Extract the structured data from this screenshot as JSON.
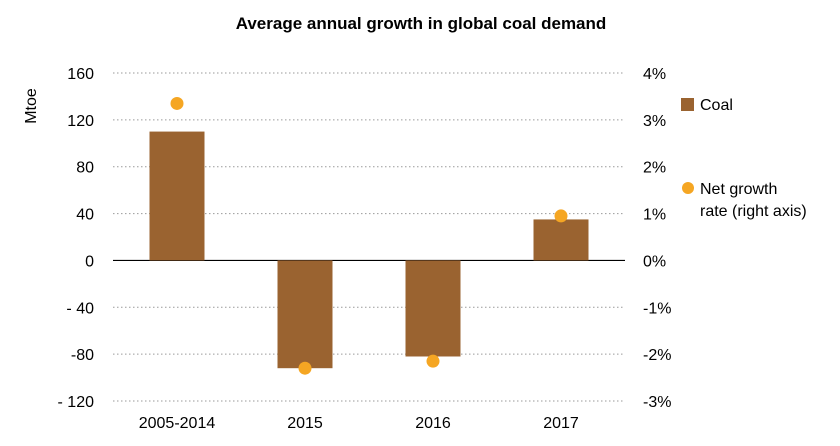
{
  "chart_data": {
    "type": "bar",
    "title": "Average annual growth in global coal demand",
    "ylabel": "Mtoe",
    "ylabel_right": "",
    "categories": [
      "2005-2014",
      "2015",
      "2016",
      "2017"
    ],
    "ylim": [
      -120,
      160
    ],
    "y_ticks": [
      "160",
      "120",
      "80",
      "40",
      "0",
      "- 40",
      "-80",
      "- 120"
    ],
    "y_tick_values": [
      160,
      120,
      80,
      40,
      0,
      -40,
      -80,
      -120
    ],
    "y2lim": [
      -3,
      4
    ],
    "y2_ticks": [
      "4%",
      "3%",
      "2%",
      "1%",
      "0%",
      "-1%",
      "-2%",
      "-3%"
    ],
    "y2_tick_values": [
      4,
      3,
      2,
      1,
      0,
      -1,
      -2,
      -3
    ],
    "grid": "horizontal dotted",
    "legend_placement": "right",
    "series": [
      {
        "name": "Coal",
        "type": "bar",
        "axis": "left",
        "values": [
          110,
          -92,
          -82,
          35
        ],
        "color": "#9a6330"
      },
      {
        "name_line1": "Net growth",
        "name_line2": "rate (right axis)",
        "name": "Net growth rate (right axis)",
        "type": "scatter",
        "axis": "right",
        "values": [
          3.35,
          -2.3,
          -2.15,
          0.95
        ],
        "color": "#f5a623"
      }
    ]
  }
}
